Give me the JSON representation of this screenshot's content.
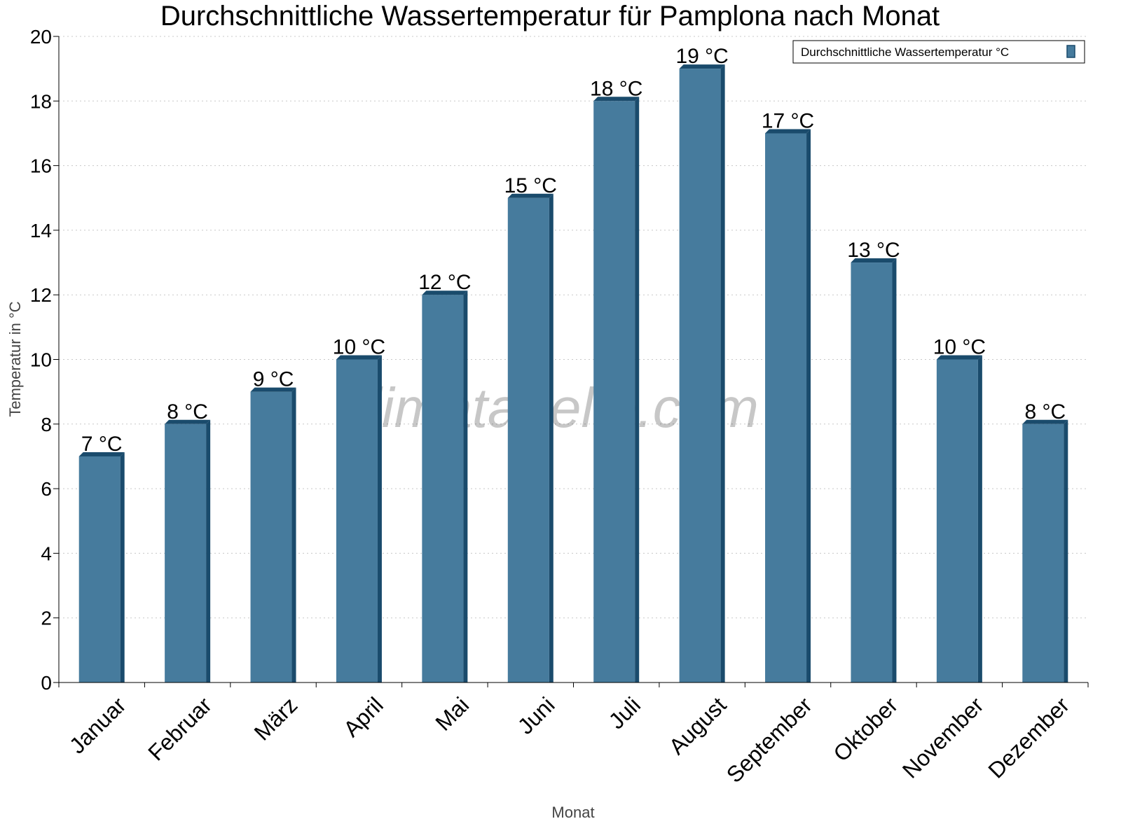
{
  "chart_data": {
    "type": "bar",
    "title": "Durchschnittliche Wassertemperatur für Pamplona nach Monat",
    "xlabel": "Monat",
    "ylabel": "Temperatur in °C",
    "categories": [
      "Januar",
      "Februar",
      "März",
      "April",
      "Mai",
      "Juni",
      "Juli",
      "August",
      "September",
      "Oktober",
      "November",
      "Dezember"
    ],
    "series": [
      {
        "name": "Durchschnittliche Wassertemperatur °C",
        "values": [
          7,
          8,
          9,
          10,
          12,
          15,
          18,
          19,
          17,
          13,
          10,
          8
        ]
      }
    ],
    "data_labels": [
      "7 °C",
      "8 °C",
      "9 °C",
      "10 °C",
      "12 °C",
      "15 °C",
      "18 °C",
      "19 °C",
      "17 °C",
      "13 °C",
      "10 °C",
      "8 °C"
    ],
    "ylim": [
      0,
      20
    ],
    "yticks": [
      0,
      2,
      4,
      6,
      8,
      10,
      12,
      14,
      16,
      18,
      20
    ],
    "grid": true,
    "legend_position": "top-right",
    "watermark": "klimatabelle.com",
    "colors": {
      "bar_front": "#467b9d",
      "bar_side": "#1a4b6c",
      "grid": "#c8c8c8"
    }
  }
}
